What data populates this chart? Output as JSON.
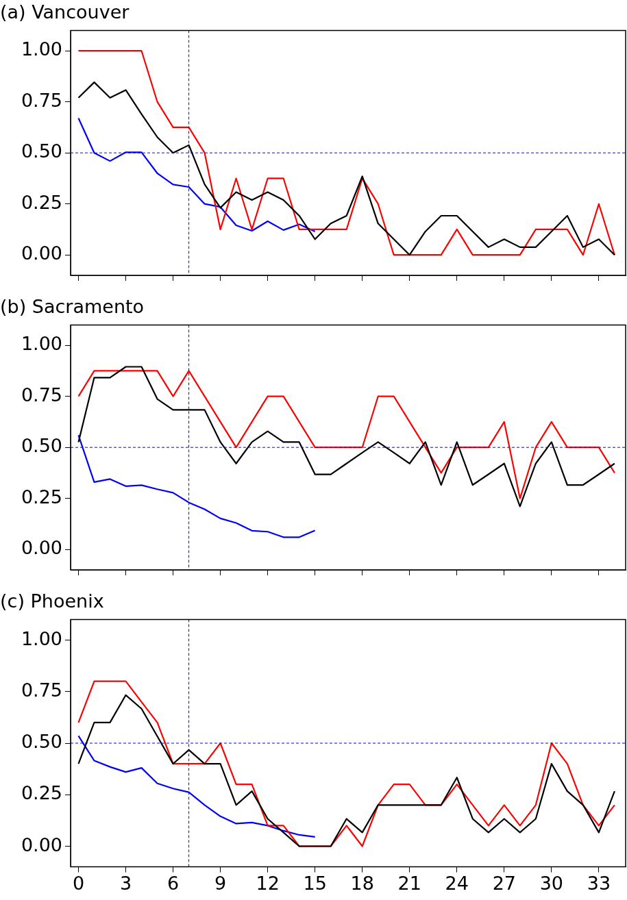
{
  "chart_data": [
    {
      "type": "line",
      "title": "(a) Vancouver",
      "x": [
        0,
        1,
        2,
        3,
        4,
        5,
        6,
        7,
        8,
        9,
        10,
        11,
        12,
        13,
        14,
        15,
        16,
        17,
        18,
        19,
        20,
        21,
        22,
        23,
        24,
        25,
        26,
        27,
        28,
        29,
        30,
        31,
        32,
        33,
        34
      ],
      "xlim": [
        -0.5,
        34.7
      ],
      "xticks": [
        0,
        3,
        6,
        9,
        12,
        15,
        18,
        21,
        24,
        27,
        30,
        33
      ],
      "ylim": [
        -0.1,
        1.1
      ],
      "yticks": [
        {
          "value": 0,
          "label": "0.00"
        },
        {
          "value": 0.25,
          "label": "0.25"
        },
        {
          "value": 0.5,
          "label": "0.50"
        },
        {
          "value": 0.75,
          "label": "0.75"
        },
        {
          "value": 1,
          "label": "1.00"
        }
      ],
      "tick_labels": "y",
      "grid": false,
      "legend": false,
      "marker": "none",
      "line_style": "solid",
      "series": [
        {
          "color": "#000000",
          "values": [
            0.77,
            0.846,
            0.77,
            0.808,
            0.69,
            0.577,
            0.5,
            0.538,
            0.346,
            0.231,
            0.308,
            0.269,
            0.308,
            0.269,
            0.192,
            0.077,
            0.154,
            0.192,
            0.385,
            0.154,
            0.077,
            0,
            0.115,
            0.192,
            0.192,
            0.115,
            0.038,
            0.077,
            0.038,
            0.038,
            0.115,
            0.192,
            0.038,
            0.077,
            0
          ]
        },
        {
          "color": "#ff0000",
          "values": [
            1,
            1,
            1,
            1,
            1,
            0.75,
            0.625,
            0.625,
            0.5,
            0.125,
            0.375,
            0.125,
            0.375,
            0.375,
            0.125,
            0.125,
            0.125,
            0.125,
            0.375,
            0.25,
            0,
            0,
            0,
            0,
            0.125,
            0,
            0,
            0,
            0,
            0.125,
            0.125,
            0.125,
            0,
            0.25,
            0
          ]
        },
        {
          "color": "#0000ff",
          "values": [
            0.67,
            0.5,
            0.46,
            0.503,
            0.503,
            0.4,
            0.345,
            0.333,
            0.25,
            0.235,
            0.145,
            0.118,
            0.165,
            0.122,
            0.15,
            0.115,
            null,
            null,
            null,
            null,
            null,
            null,
            null,
            null,
            null,
            null,
            null,
            null,
            null,
            null,
            null,
            null,
            null,
            null,
            null
          ]
        }
      ],
      "ref_lines": [
        {
          "axis": "x",
          "value": 7,
          "color": "#0000ff",
          "line_style": "dashed"
        },
        {
          "axis": "y",
          "value": 0.5,
          "color": "#0000ff",
          "line_style": "dashed"
        }
      ]
    },
    {
      "type": "line",
      "title": "(b) Sacramento",
      "x": [
        0,
        1,
        2,
        3,
        4,
        5,
        6,
        7,
        8,
        9,
        10,
        11,
        12,
        13,
        14,
        15,
        16,
        17,
        18,
        19,
        20,
        21,
        22,
        23,
        24,
        25,
        26,
        27,
        28,
        29,
        30,
        31,
        32,
        33,
        34
      ],
      "xlim": [
        -0.5,
        34.7
      ],
      "xticks": [
        0,
        3,
        6,
        9,
        12,
        15,
        18,
        21,
        24,
        27,
        30,
        33
      ],
      "ylim": [
        -0.1,
        1.1
      ],
      "yticks": [
        {
          "value": 0,
          "label": "0.00"
        },
        {
          "value": 0.25,
          "label": "0.25"
        },
        {
          "value": 0.5,
          "label": "0.50"
        },
        {
          "value": 0.75,
          "label": "0.75"
        },
        {
          "value": 1,
          "label": "1.00"
        }
      ],
      "tick_labels": "y",
      "grid": false,
      "legend": false,
      "marker": "none",
      "line_style": "solid",
      "series": [
        {
          "color": "#000000",
          "values": [
            0.526,
            0.842,
            0.842,
            0.895,
            0.895,
            0.737,
            0.684,
            0.684,
            0.684,
            0.526,
            0.421,
            0.526,
            0.579,
            0.526,
            0.526,
            0.368,
            0.368,
            0.421,
            0.474,
            0.526,
            0.474,
            0.421,
            0.526,
            0.316,
            0.526,
            0.316,
            0.368,
            0.421,
            0.211,
            0.421,
            0.526,
            0.316,
            0.316,
            0.368,
            0.421
          ]
        },
        {
          "color": "#ff0000",
          "values": [
            0.75,
            0.875,
            0.875,
            0.875,
            0.875,
            0.875,
            0.75,
            0.875,
            0.75,
            0.625,
            0.5,
            0.625,
            0.75,
            0.75,
            0.625,
            0.5,
            0.5,
            0.5,
            0.5,
            0.75,
            0.75,
            0.625,
            0.5,
            0.375,
            0.5,
            0.5,
            0.5,
            0.625,
            0.25,
            0.5,
            0.625,
            0.5,
            0.5,
            0.5,
            0.375
          ]
        },
        {
          "color": "#0000ff",
          "values": [
            0.56,
            0.33,
            0.345,
            0.31,
            0.315,
            0.295,
            0.278,
            0.23,
            0.197,
            0.152,
            0.13,
            0.092,
            0.087,
            0.06,
            0.06,
            0.093,
            null,
            null,
            null,
            null,
            null,
            null,
            null,
            null,
            null,
            null,
            null,
            null,
            null,
            null,
            null,
            null,
            null,
            null,
            null
          ]
        }
      ],
      "ref_lines": [
        {
          "axis": "x",
          "value": 7,
          "color": "#0000ff",
          "line_style": "dashed"
        },
        {
          "axis": "y",
          "value": 0.5,
          "color": "#0000ff",
          "line_style": "dashed"
        }
      ]
    },
    {
      "type": "line",
      "title": "(c) Phoenix",
      "x": [
        0,
        1,
        2,
        3,
        4,
        5,
        6,
        7,
        8,
        9,
        10,
        11,
        12,
        13,
        14,
        15,
        16,
        17,
        18,
        19,
        20,
        21,
        22,
        23,
        24,
        25,
        26,
        27,
        28,
        29,
        30,
        31,
        32,
        33,
        34
      ],
      "xlim": [
        -0.5,
        34.7
      ],
      "xticks": [
        0,
        3,
        6,
        9,
        12,
        15,
        18,
        21,
        24,
        27,
        30,
        33
      ],
      "ylim": [
        -0.1,
        1.1
      ],
      "yticks": [
        {
          "value": 0,
          "label": "0.00"
        },
        {
          "value": 0.25,
          "label": "0.25"
        },
        {
          "value": 0.5,
          "label": "0.50"
        },
        {
          "value": 0.75,
          "label": "0.75"
        },
        {
          "value": 1,
          "label": "1.00"
        }
      ],
      "grid": false,
      "legend": false,
      "marker": "none",
      "line_style": "solid",
      "series": [
        {
          "color": "#000000",
          "values": [
            0.4,
            0.6,
            0.6,
            0.733,
            0.667,
            0.533,
            0.4,
            0.467,
            0.4,
            0.4,
            0.2,
            0.267,
            0.133,
            0.067,
            0,
            0,
            0,
            0.133,
            0.067,
            0.2,
            0.2,
            0.2,
            0.2,
            0.2,
            0.333,
            0.133,
            0.067,
            0.133,
            0.067,
            0.133,
            0.4,
            0.267,
            0.2,
            0.067,
            0.267
          ]
        },
        {
          "color": "#ff0000",
          "values": [
            0.6,
            0.8,
            0.8,
            0.8,
            0.7,
            0.6,
            0.4,
            0.4,
            0.4,
            0.5,
            0.3,
            0.3,
            0.1,
            0.1,
            0,
            0,
            0,
            0.1,
            0,
            0.2,
            0.3,
            0.3,
            0.2,
            0.2,
            0.3,
            0.2,
            0.1,
            0.2,
            0.1,
            0.2,
            0.5,
            0.4,
            0.2,
            0.1,
            0.2
          ]
        },
        {
          "color": "#0000ff",
          "values": [
            0.535,
            0.415,
            0.385,
            0.36,
            0.38,
            0.305,
            0.28,
            0.262,
            0.2,
            0.145,
            0.11,
            0.115,
            0.1,
            0.075,
            0.055,
            0.045,
            null,
            null,
            null,
            null,
            null,
            null,
            null,
            null,
            null,
            null,
            null,
            null,
            null,
            null,
            null,
            null,
            null,
            null,
            null
          ]
        }
      ],
      "ref_lines": [
        {
          "axis": "x",
          "value": 7,
          "color": "#0000ff",
          "line_style": "dashed"
        },
        {
          "axis": "y",
          "value": 0.5,
          "color": "#0000ff",
          "line_style": "dashed"
        }
      ]
    }
  ]
}
